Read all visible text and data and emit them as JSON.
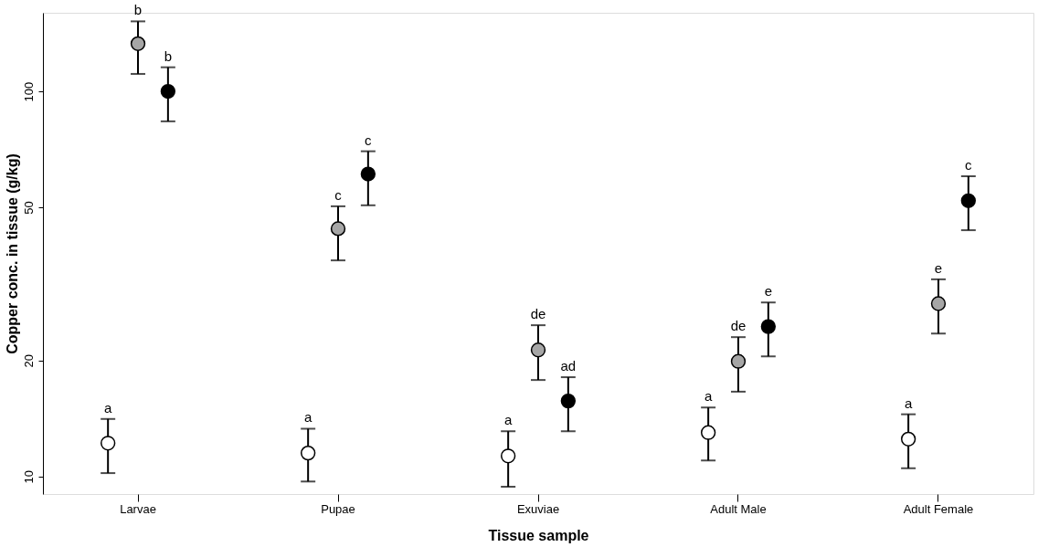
{
  "chart_data": {
    "type": "scatter",
    "xlabel": "Tissue sample",
    "ylabel": "Copper conc. in tissue (g/kg)",
    "categories": [
      "Larvae",
      "Pupae",
      "Exuviae",
      "Adult Male",
      "Adult Female"
    ],
    "log": "y",
    "ylim": [
      9,
      160
    ],
    "yticks": [
      10,
      20,
      50,
      100
    ],
    "grid": false,
    "legend": false,
    "series": [
      {
        "color": "#ffffff",
        "values": [
          12.2,
          11.5,
          11.3,
          13.0,
          12.5
        ],
        "errors": [
          [
            10.2,
            14.1
          ],
          [
            9.7,
            13.3
          ],
          [
            9.4,
            13.1
          ],
          [
            11.0,
            15.1
          ],
          [
            10.5,
            14.5
          ]
        ],
        "value_labels": [
          "a",
          "a",
          "a",
          "a",
          "a"
        ]
      },
      {
        "color": "#a6a6a6",
        "values": [
          133,
          44,
          21.3,
          19.9,
          28.1
        ],
        "errors": [
          [
            111,
            152
          ],
          [
            36.4,
            50.3
          ],
          [
            17.8,
            24.7
          ],
          [
            16.6,
            23.0
          ],
          [
            23.5,
            32.5
          ]
        ],
        "value_labels": [
          "b",
          "c",
          "de",
          "de",
          "e"
        ]
      },
      {
        "color": "#000000",
        "values": [
          100,
          61,
          15.7,
          24.5,
          52
        ],
        "errors": [
          [
            83.6,
            115.5
          ],
          [
            50.6,
            69.9
          ],
          [
            13.1,
            18.1
          ],
          [
            20.5,
            28.3
          ],
          [
            43.6,
            60.2
          ]
        ],
        "value_labels": [
          "b",
          "c",
          "ad",
          "e",
          "c"
        ]
      }
    ]
  }
}
